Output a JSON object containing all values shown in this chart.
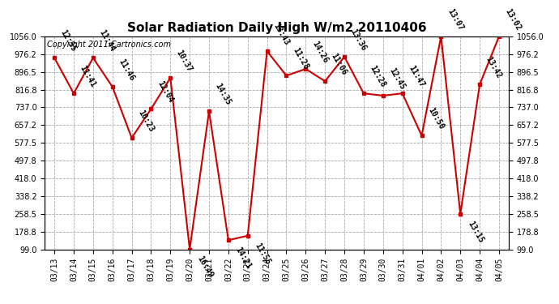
{
  "title": "Solar Radiation Daily High W/m2 20110406",
  "copyright": "Copyright 2011 Cartronics.com",
  "dates": [
    "03/13",
    "03/14",
    "03/15",
    "03/16",
    "03/17",
    "03/18",
    "03/19",
    "03/20",
    "03/21",
    "03/22",
    "03/23",
    "03/24",
    "03/25",
    "03/26",
    "03/27",
    "03/28",
    "03/29",
    "03/30",
    "03/31",
    "04/01",
    "04/02",
    "04/03",
    "04/04",
    "04/05"
  ],
  "values": [
    960,
    800,
    960,
    830,
    600,
    730,
    870,
    99,
    720,
    140,
    160,
    990,
    880,
    910,
    855,
    965,
    800,
    790,
    800,
    610,
    1056,
    258,
    840,
    1056
  ],
  "labels": [
    "12:55",
    "11:41",
    "11:44",
    "11:46",
    "10:23",
    "12:04",
    "10:37",
    "16:49",
    "14:35",
    "14:21",
    "11:55",
    "13:43",
    "11:28",
    "14:26",
    "11:06",
    "13:36",
    "12:28",
    "12:45",
    "11:47",
    "10:50",
    "13:07",
    "13:15",
    "13:42",
    "13:02"
  ],
  "line_color": "#cc0000",
  "marker_color": "#cc0000",
  "bg_color": "#ffffff",
  "plot_bg_color": "#ffffff",
  "grid_color": "#aaaaaa",
  "ylim": [
    99.0,
    1056.0
  ],
  "yticks": [
    99.0,
    178.8,
    258.5,
    338.2,
    418.0,
    497.8,
    577.5,
    657.2,
    737.0,
    816.8,
    896.5,
    976.2,
    1056.0
  ],
  "title_fontsize": 11,
  "label_fontsize": 7,
  "copyright_fontsize": 7,
  "tick_fontsize": 7,
  "low_threshold": 300
}
